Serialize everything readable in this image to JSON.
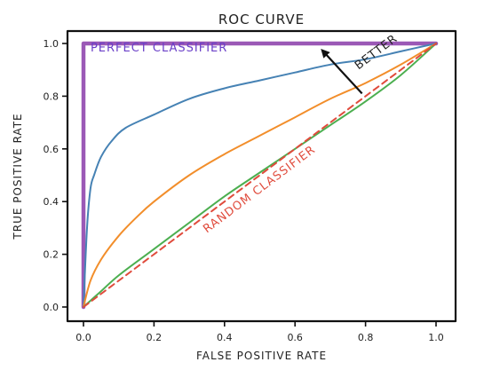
{
  "chart_data": {
    "type": "line",
    "title": "ROC CURVE",
    "xlabel": "FALSE POSITIVE RATE",
    "ylabel": "TRUE POSITIVE RATE",
    "xlim": [
      0,
      1
    ],
    "ylim": [
      0,
      1
    ],
    "xticks": [
      "0.0",
      "0.2",
      "0.4",
      "0.6",
      "0.8",
      "1.0"
    ],
    "yticks": [
      "0.0",
      "0.2",
      "0.4",
      "0.6",
      "0.8",
      "1.0"
    ],
    "grid": false,
    "series": [
      {
        "name": "PERFECT CLASSIFIER",
        "color": "#9b59b6",
        "style": "solid-thick",
        "x": [
          0,
          0,
          1
        ],
        "y": [
          0,
          1,
          1
        ]
      },
      {
        "color": "#4682b4",
        "style": "solid",
        "x": [
          0,
          0.01,
          0.02,
          0.03,
          0.05,
          0.08,
          0.12,
          0.2,
          0.3,
          0.4,
          0.5,
          0.6,
          0.7,
          0.8,
          0.9,
          1.0
        ],
        "y": [
          0,
          0.3,
          0.45,
          0.5,
          0.57,
          0.63,
          0.68,
          0.73,
          0.79,
          0.83,
          0.86,
          0.89,
          0.92,
          0.94,
          0.97,
          1.0
        ]
      },
      {
        "color": "#f28e2b",
        "style": "solid",
        "x": [
          0,
          0.02,
          0.05,
          0.1,
          0.15,
          0.2,
          0.3,
          0.4,
          0.5,
          0.6,
          0.7,
          0.8,
          0.9,
          1.0
        ],
        "y": [
          0,
          0.1,
          0.18,
          0.27,
          0.34,
          0.4,
          0.5,
          0.58,
          0.65,
          0.72,
          0.79,
          0.85,
          0.92,
          1.0
        ]
      },
      {
        "color": "#4caf50",
        "style": "solid",
        "x": [
          0,
          0.05,
          0.1,
          0.2,
          0.3,
          0.4,
          0.5,
          0.6,
          0.7,
          0.8,
          0.9,
          1.0
        ],
        "y": [
          0,
          0.06,
          0.12,
          0.22,
          0.32,
          0.42,
          0.51,
          0.6,
          0.69,
          0.78,
          0.88,
          1.0
        ]
      },
      {
        "name": "RANDOM CLASSIFIER",
        "color": "#e04b3c",
        "style": "dashed",
        "x": [
          0,
          1
        ],
        "y": [
          0,
          1
        ]
      }
    ],
    "annotations": [
      {
        "text": "PERFECT CLASSIFIER",
        "x": 0.02,
        "y": 0.97,
        "color": "#6a3fc8"
      },
      {
        "text": "RANDOM CLASSIFIER",
        "x": 0.35,
        "y": 0.28,
        "color": "#e04b3c",
        "rotation": -37
      },
      {
        "text": "BETTER",
        "x": 0.78,
        "y": 0.9,
        "color": "#222222",
        "rotation": -37,
        "arrow_from": [
          0.79,
          0.81
        ],
        "arrow_to": [
          0.68,
          0.97
        ]
      }
    ]
  }
}
